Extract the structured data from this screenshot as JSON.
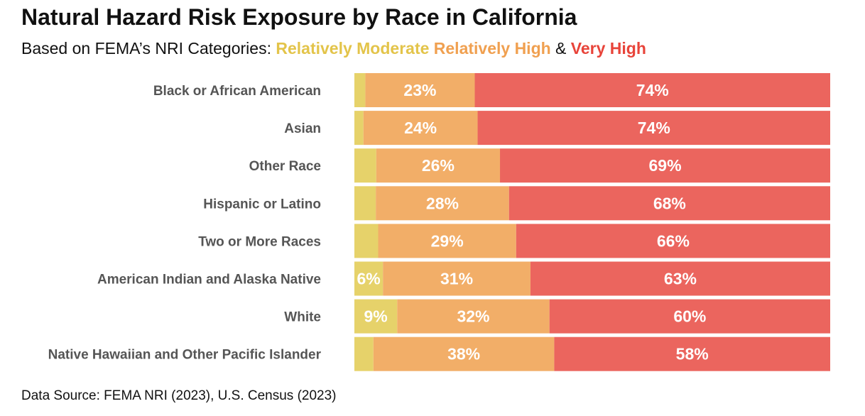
{
  "title": "Natural Hazard Risk Exposure by Race in California",
  "subtitle": {
    "prefix": "Based on FEMA’s NRI Categories: ",
    "cat1": "Relatively Moderate",
    "cat2": "Relatively High",
    "sep": " & ",
    "cat3": "Very High"
  },
  "source": "Data Source: FEMA NRI (2023), U.S. Census (2023)",
  "chart_data": {
    "type": "bar",
    "orientation": "horizontal",
    "stacked": true,
    "xlim": [
      0,
      100
    ],
    "categories": [
      "Black or African American",
      "Asian",
      "Other Race",
      "Hispanic or Latino",
      "Two or More Races",
      "American Indian and Alaska Native",
      "White",
      "Native Hawaiian and Other Pacific Islander"
    ],
    "series": [
      {
        "name": "Relatively Moderate",
        "color": "#E6D26A",
        "values": [
          2.3,
          1.9,
          4.6,
          4.5,
          5,
          6,
          9,
          4
        ],
        "labels": [
          "",
          "",
          "",
          "",
          "",
          "6%",
          "9%",
          ""
        ]
      },
      {
        "name": "Relatively High",
        "color": "#F2AE68",
        "values": [
          23,
          24,
          26,
          28,
          29,
          31,
          32,
          38
        ],
        "labels": [
          "23%",
          "24%",
          "26%",
          "28%",
          "29%",
          "31%",
          "32%",
          "38%"
        ]
      },
      {
        "name": "Very High",
        "color": "#EB655E",
        "values": [
          74,
          74,
          69,
          68,
          66,
          63,
          60,
          58
        ],
        "labels": [
          "74%",
          "74%",
          "69%",
          "68%",
          "66%",
          "63%",
          "60%",
          "58%"
        ]
      }
    ],
    "subtitle_colors": {
      "moderate": "#E3C44A",
      "high": "#F0A050",
      "very_high": "#E8443A"
    }
  }
}
